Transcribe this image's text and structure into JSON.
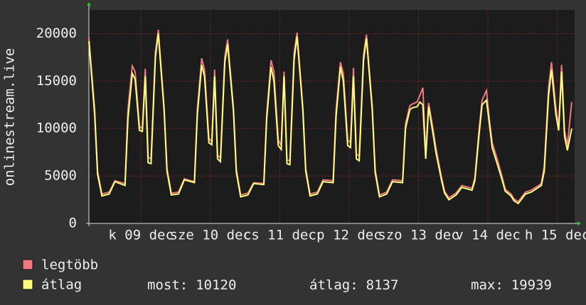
{
  "chart_data": {
    "type": "line",
    "ylabel": "onlinestream.live",
    "x": [
      0,
      2,
      3,
      4.5,
      7,
      9,
      12.5,
      13.5,
      15,
      16,
      17.5,
      18.5,
      19.5,
      20.5,
      21.5,
      23,
      24,
      26,
      27,
      28.5,
      31,
      33,
      36.5,
      37.5,
      39,
      40,
      41.5,
      42.5,
      43.5,
      44.5,
      45.5,
      47,
      48,
      50,
      51,
      52.5,
      55,
      57,
      60.5,
      61.5,
      63,
      64,
      65.5,
      66.5,
      67.5,
      68.5,
      69.5,
      71,
      72,
      74,
      75,
      76.5,
      79,
      81,
      84.5,
      85.5,
      87,
      88,
      89.5,
      90.5,
      91.5,
      92.5,
      93.5,
      95,
      96,
      98,
      99,
      100.5,
      103,
      105,
      108.5,
      109.5,
      111,
      112,
      113.5,
      114.5,
      115.5,
      116.5,
      117.5,
      119,
      120,
      122,
      123,
      124.5,
      127,
      129,
      132.5,
      133.5,
      135,
      136,
      137.5,
      138.5,
      139.5,
      140.5,
      141.5,
      143,
      144,
      146,
      147,
      148.5,
      151,
      153,
      156.5,
      157.5,
      159,
      160,
      161.5,
      162.5,
      163.5,
      164.5,
      165.5,
      167
    ],
    "xlim": [
      0,
      168
    ],
    "xticks": [
      {
        "value": 18,
        "label": "k 09 dec"
      },
      {
        "value": 42,
        "label": "sze 10 dec"
      },
      {
        "value": 66,
        "label": "cs 11 dec"
      },
      {
        "value": 90,
        "label": "p 12 dec"
      },
      {
        "value": 114,
        "label": "szo 13 dec"
      },
      {
        "value": 138,
        "label": "v 14 dec"
      },
      {
        "value": 162,
        "label": "h 15 dec"
      }
    ],
    "ylim": [
      0,
      22500
    ],
    "yticks": [
      0,
      5000,
      10000,
      15000,
      20000
    ],
    "grid": true,
    "series": [
      {
        "name": "legtöbb",
        "color": "#f07880",
        "values": [
          19600,
          12000,
          5500,
          3100,
          3300,
          4500,
          4200,
          12000,
          16600,
          16000,
          10200,
          10000,
          16300,
          7000,
          6800,
          18000,
          20400,
          12300,
          5800,
          3200,
          3300,
          4700,
          4400,
          12000,
          17400,
          16200,
          9000,
          8600,
          16200,
          7200,
          6900,
          17500,
          19400,
          12100,
          5700,
          3000,
          3200,
          4300,
          4200,
          11500,
          17200,
          16000,
          8800,
          8200,
          16000,
          6700,
          6600,
          18000,
          20100,
          12300,
          5800,
          3100,
          3300,
          4600,
          4500,
          12000,
          17000,
          15800,
          8800,
          8500,
          16400,
          7300,
          7100,
          17800,
          19900,
          12400,
          5700,
          3000,
          3300,
          4600,
          4500,
          10500,
          12400,
          12600,
          12800,
          13500,
          14300,
          7300,
          12700,
          10000,
          8000,
          4800,
          3400,
          2700,
          3200,
          4000,
          3700,
          4800,
          10000,
          13000,
          14000,
          11000,
          8500,
          7500,
          6500,
          4800,
          3600,
          3100,
          2600,
          2300,
          3300,
          3500,
          4200,
          6000,
          14300,
          17000,
          12200,
          10200,
          16700,
          9800,
          8200,
          12800
        ]
      },
      {
        "name": "átlag",
        "color": "#ffff80",
        "values": [
          19200,
          11500,
          5200,
          2900,
          3100,
          4400,
          4000,
          11000,
          15800,
          15200,
          9800,
          9700,
          15500,
          6400,
          6300,
          17500,
          20000,
          12000,
          5500,
          3000,
          3100,
          4600,
          4300,
          11500,
          16700,
          15500,
          8500,
          8300,
          15500,
          6800,
          6500,
          17000,
          18900,
          11800,
          5400,
          2800,
          3000,
          4200,
          4100,
          11000,
          16500,
          15000,
          8200,
          7800,
          15500,
          6300,
          6200,
          17300,
          19700,
          12000,
          5500,
          2900,
          3100,
          4400,
          4300,
          11300,
          16500,
          15000,
          8200,
          8000,
          15500,
          6800,
          6600,
          17200,
          19500,
          12000,
          5400,
          2800,
          3100,
          4400,
          4300,
          10000,
          12000,
          12200,
          12300,
          12800,
          12500,
          6800,
          12300,
          9500,
          7500,
          4500,
          3200,
          2500,
          3000,
          3800,
          3500,
          4500,
          9500,
          12500,
          13000,
          10500,
          8000,
          7000,
          6000,
          4500,
          3400,
          2900,
          2400,
          2100,
          3100,
          3300,
          4000,
          5500,
          13500,
          16200,
          11500,
          9800,
          16000,
          9200,
          7700,
          10000
        ]
      }
    ],
    "stats": [
      {
        "label": "most:",
        "value": 10120
      },
      {
        "label": "átlag:",
        "value": 8137
      },
      {
        "label": "max:",
        "value": 19939
      }
    ]
  }
}
